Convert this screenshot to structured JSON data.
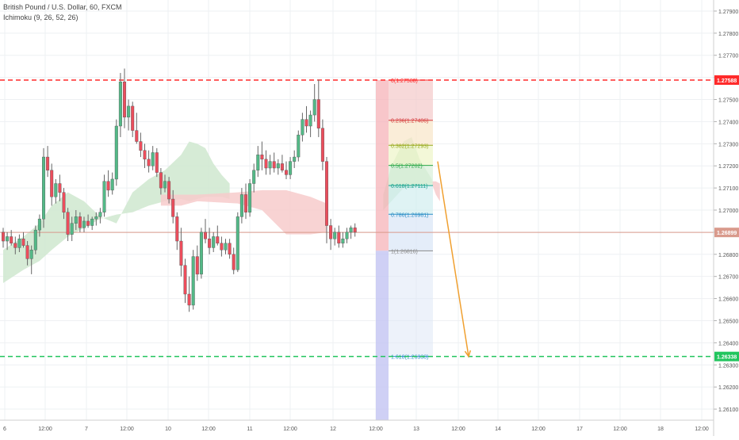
{
  "header": {
    "symbol_title": "British Pound / U.S. Dollar, 60, FXCM",
    "indicator": "Ichimoku (9, 26, 52, 26)"
  },
  "colors": {
    "bull": "#53b987",
    "bear": "#eb4d5c",
    "resistance_line": "#ff2a2a",
    "target_line": "#22c55e",
    "last_price_line": "#d99a8c",
    "arrow": "#f0a030",
    "cloud_bull": "#cfe8cf",
    "cloud_bear": "#f7cbcb",
    "fib_zone_red": "#f6b3b8",
    "fib_zone_blue": "#c3c4f3"
  },
  "chart_data": {
    "type": "candlestick",
    "title": "British Pound / U.S. Dollar, 60, FXCM",
    "ylim": [
      1.2605,
      1.2795
    ],
    "y_ticks": [
      "1.27900",
      "1.27800",
      "1.27700",
      "1.27600",
      "1.27500",
      "1.27400",
      "1.27300",
      "1.27200",
      "1.27100",
      "1.27000",
      "1.26900",
      "1.26800",
      "1.26700",
      "1.26600",
      "1.26500",
      "1.26400",
      "1.26300",
      "1.26200",
      "1.26100"
    ],
    "x_ticks": [
      "6",
      "12:00",
      "7",
      "12:00",
      "10",
      "12:00",
      "11",
      "12:00",
      "12",
      "12:00",
      "13",
      "12:00",
      "14",
      "12:00",
      "17",
      "12:00",
      "18",
      "12:00"
    ],
    "candles": [
      [
        1.269,
        1.2692,
        1.2683,
        1.2686
      ],
      [
        1.2686,
        1.269,
        1.2682,
        1.2688
      ],
      [
        1.2688,
        1.2691,
        1.2684,
        1.2685
      ],
      [
        1.2685,
        1.2688,
        1.268,
        1.2683
      ],
      [
        1.2683,
        1.2689,
        1.2681,
        1.2687
      ],
      [
        1.2687,
        1.269,
        1.2683,
        1.2684
      ],
      [
        1.2684,
        1.2686,
        1.2675,
        1.2678
      ],
      [
        1.2678,
        1.2684,
        1.2671,
        1.2682
      ],
      [
        1.2682,
        1.2693,
        1.268,
        1.2691
      ],
      [
        1.2691,
        1.2698,
        1.2688,
        1.2696
      ],
      [
        1.2696,
        1.2728,
        1.2692,
        1.2724
      ],
      [
        1.2724,
        1.2729,
        1.2715,
        1.2718
      ],
      [
        1.2718,
        1.2721,
        1.2702,
        1.2706
      ],
      [
        1.2706,
        1.2714,
        1.2703,
        1.2712
      ],
      [
        1.2712,
        1.2716,
        1.2704,
        1.2708
      ],
      [
        1.2708,
        1.271,
        1.2696,
        1.2699
      ],
      [
        1.2699,
        1.2701,
        1.2686,
        1.2689
      ],
      [
        1.2689,
        1.2697,
        1.2686,
        1.2694
      ],
      [
        1.2694,
        1.27,
        1.2691,
        1.2697
      ],
      [
        1.2697,
        1.2699,
        1.269,
        1.2692
      ],
      [
        1.2692,
        1.2697,
        1.269,
        1.2695
      ],
      [
        1.2695,
        1.2698,
        1.2692,
        1.2693
      ],
      [
        1.2693,
        1.2697,
        1.2691,
        1.2696
      ],
      [
        1.2696,
        1.2699,
        1.2693,
        1.2697
      ],
      [
        1.2697,
        1.2701,
        1.2694,
        1.2699
      ],
      [
        1.2699,
        1.2716,
        1.2697,
        1.2713
      ],
      [
        1.2713,
        1.2718,
        1.2706,
        1.2709
      ],
      [
        1.2709,
        1.2717,
        1.2707,
        1.2714
      ],
      [
        1.2714,
        1.2741,
        1.2711,
        1.2738
      ],
      [
        1.2738,
        1.2762,
        1.2733,
        1.2758
      ],
      [
        1.2758,
        1.2764,
        1.2737,
        1.2742
      ],
      [
        1.2742,
        1.275,
        1.2736,
        1.2747
      ],
      [
        1.2747,
        1.2749,
        1.2733,
        1.2736
      ],
      [
        1.2736,
        1.2744,
        1.273,
        1.2731
      ],
      [
        1.2731,
        1.2735,
        1.2724,
        1.2727
      ],
      [
        1.2727,
        1.273,
        1.2719,
        1.2723
      ],
      [
        1.2723,
        1.2727,
        1.2717,
        1.272
      ],
      [
        1.272,
        1.2729,
        1.2718,
        1.2726
      ],
      [
        1.2726,
        1.2728,
        1.2715,
        1.2717
      ],
      [
        1.2717,
        1.2719,
        1.2707,
        1.271
      ],
      [
        1.271,
        1.2716,
        1.2708,
        1.2713
      ],
      [
        1.2713,
        1.2715,
        1.2703,
        1.2705
      ],
      [
        1.2705,
        1.2709,
        1.2694,
        1.2697
      ],
      [
        1.2697,
        1.2699,
        1.2682,
        1.2686
      ],
      [
        1.2686,
        1.2692,
        1.267,
        1.2675
      ],
      [
        1.2675,
        1.2678,
        1.2658,
        1.2662
      ],
      [
        1.2662,
        1.267,
        1.2654,
        1.2657
      ],
      [
        1.2657,
        1.2682,
        1.2655,
        1.2679
      ],
      [
        1.2679,
        1.2684,
        1.2668,
        1.2671
      ],
      [
        1.2671,
        1.2692,
        1.2669,
        1.269
      ],
      [
        1.269,
        1.2696,
        1.2685,
        1.2687
      ],
      [
        1.2687,
        1.2692,
        1.268,
        1.2683
      ],
      [
        1.2683,
        1.269,
        1.2681,
        1.2688
      ],
      [
        1.2688,
        1.2693,
        1.2684,
        1.2685
      ],
      [
        1.2685,
        1.2688,
        1.2679,
        1.2682
      ],
      [
        1.2682,
        1.2687,
        1.268,
        1.2685
      ],
      [
        1.2685,
        1.2687,
        1.2678,
        1.268
      ],
      [
        1.268,
        1.2683,
        1.2671,
        1.2673
      ],
      [
        1.2673,
        1.2699,
        1.2672,
        1.2697
      ],
      [
        1.2697,
        1.271,
        1.2694,
        1.2707
      ],
      [
        1.2707,
        1.2712,
        1.2696,
        1.2699
      ],
      [
        1.2699,
        1.2714,
        1.2697,
        1.2712
      ],
      [
        1.2712,
        1.2721,
        1.2708,
        1.2718
      ],
      [
        1.2718,
        1.2729,
        1.2715,
        1.2725
      ],
      [
        1.2725,
        1.2731,
        1.2718,
        1.2723
      ],
      [
        1.2723,
        1.2727,
        1.2716,
        1.2719
      ],
      [
        1.2719,
        1.2725,
        1.2716,
        1.2722
      ],
      [
        1.2722,
        1.2726,
        1.2717,
        1.2719
      ],
      [
        1.2719,
        1.2723,
        1.2716,
        1.2721
      ],
      [
        1.2721,
        1.2725,
        1.2717,
        1.2718
      ],
      [
        1.2718,
        1.2722,
        1.2714,
        1.2716
      ],
      [
        1.2716,
        1.2724,
        1.2714,
        1.2722
      ],
      [
        1.2722,
        1.2727,
        1.2719,
        1.2724
      ],
      [
        1.2724,
        1.2736,
        1.2722,
        1.2734
      ],
      [
        1.2734,
        1.2744,
        1.2731,
        1.2741
      ],
      [
        1.2741,
        1.2747,
        1.2735,
        1.2738
      ],
      [
        1.2738,
        1.2745,
        1.2733,
        1.2743
      ],
      [
        1.2743,
        1.2757,
        1.274,
        1.275
      ],
      [
        1.275,
        1.2759,
        1.2733,
        1.2737
      ],
      [
        1.2737,
        1.2741,
        1.2718,
        1.2722
      ],
      [
        1.2722,
        1.2724,
        1.2685,
        1.2693
      ],
      [
        1.2693,
        1.2696,
        1.2682,
        1.2687
      ],
      [
        1.2687,
        1.2692,
        1.2684,
        1.269
      ],
      [
        1.269,
        1.2693,
        1.2683,
        1.2685
      ],
      [
        1.2685,
        1.269,
        1.2683,
        1.2687
      ],
      [
        1.2687,
        1.2692,
        1.2685,
        1.269
      ],
      [
        1.269,
        1.2693,
        1.2687,
        1.2692
      ],
      [
        1.2692,
        1.2694,
        1.2688,
        1.269
      ]
    ],
    "cloud_bull": {
      "upper": [
        [
          0,
          1.2682
        ],
        [
          5,
          1.2688
        ],
        [
          9,
          1.2694
        ],
        [
          12,
          1.2702
        ],
        [
          16,
          1.2708
        ],
        [
          20,
          1.2704
        ],
        [
          24,
          1.2697
        ],
        [
          28,
          1.2694
        ],
        [
          32,
          1.2708
        ],
        [
          36,
          1.2714
        ],
        [
          40,
          1.2718
        ],
        [
          44,
          1.2725
        ],
        [
          46,
          1.2731
        ],
        [
          48,
          1.273
        ],
        [
          50,
          1.2728
        ],
        [
          52,
          1.2721
        ],
        [
          54,
          1.2716
        ],
        [
          56,
          1.2712
        ]
      ],
      "lower": [
        [
          56,
          1.2705
        ],
        [
          54,
          1.2706
        ],
        [
          52,
          1.2706
        ],
        [
          50,
          1.2706
        ],
        [
          48,
          1.2705
        ],
        [
          46,
          1.2704
        ],
        [
          44,
          1.2705
        ],
        [
          40,
          1.2704
        ],
        [
          36,
          1.2702
        ],
        [
          32,
          1.2699
        ],
        [
          28,
          1.2698
        ],
        [
          24,
          1.2696
        ],
        [
          20,
          1.2692
        ],
        [
          16,
          1.2688
        ],
        [
          12,
          1.2682
        ],
        [
          9,
          1.2677
        ],
        [
          5,
          1.2673
        ],
        [
          0,
          1.2667
        ]
      ]
    },
    "cloud_bull_2": {
      "upper": [
        [
          94,
          1.2707
        ],
        [
          96,
          1.272
        ],
        [
          99,
          1.2731
        ],
        [
          101,
          1.2733
        ],
        [
          103,
          1.2723
        ],
        [
          106,
          1.2714
        ]
      ],
      "lower": [
        [
          106,
          1.2712
        ],
        [
          103,
          1.2711
        ],
        [
          101,
          1.271
        ],
        [
          99,
          1.271
        ],
        [
          96,
          1.2704
        ],
        [
          94,
          1.27
        ]
      ]
    },
    "cloud_bear": {
      "upper": [
        [
          39,
          1.2707
        ],
        [
          44,
          1.2707
        ],
        [
          48,
          1.2707
        ],
        [
          58,
          1.2708
        ],
        [
          64,
          1.2709
        ],
        [
          70,
          1.2709
        ],
        [
          76,
          1.2706
        ],
        [
          80,
          1.2703
        ]
      ],
      "lower": [
        [
          80,
          1.269
        ],
        [
          76,
          1.2689
        ],
        [
          70,
          1.2689
        ],
        [
          64,
          1.27
        ],
        [
          58,
          1.2703
        ],
        [
          48,
          1.2704
        ],
        [
          44,
          1.2702
        ],
        [
          39,
          1.2702
        ]
      ]
    },
    "cloud_bear_2": {
      "upper": [
        [
          106,
          1.2713
        ],
        [
          107,
          1.2713
        ],
        [
          108,
          1.2712
        ]
      ],
      "lower": [
        [
          108,
          1.2704
        ],
        [
          107,
          1.2707
        ],
        [
          106,
          1.2712
        ]
      ]
    },
    "fib_levels": [
      {
        "label": "0(1.27588)",
        "value": 1.27588,
        "color": "#ff2a2a"
      },
      {
        "label": "0.236(1.27406)",
        "value": 1.27406,
        "color": "#d63c3c"
      },
      {
        "label": "0.382(1.27293)",
        "value": 1.27293,
        "color": "#9aab21"
      },
      {
        "label": "0.5(1.27202)",
        "value": 1.27202,
        "color": "#2ca84a"
      },
      {
        "label": "0.618(1.27111)",
        "value": 1.27111,
        "color": "#19a38f"
      },
      {
        "label": "0.786(1.26981)",
        "value": 1.26981,
        "color": "#2b8fc6"
      },
      {
        "label": "1(1.26816)",
        "value": 1.26816,
        "color": "#8a8a8a"
      },
      {
        "label": "1.618(1.26338)",
        "value": 1.26338,
        "color": "#2b8fc6"
      }
    ],
    "horizontal_lines": [
      {
        "value": 1.27588,
        "label": "1.27588",
        "style": "dashed",
        "color": "#ff2a2a"
      },
      {
        "value": 1.26338,
        "label": "1.26338",
        "style": "dashed",
        "color": "#22c55e"
      },
      {
        "value": 1.26899,
        "label": "1.26899",
        "style": "solid",
        "color": "#d99a8c"
      }
    ],
    "arrow": {
      "from": [
        91,
        1.2722
      ],
      "to": [
        97,
        1.26338
      ]
    },
    "grid": true
  }
}
